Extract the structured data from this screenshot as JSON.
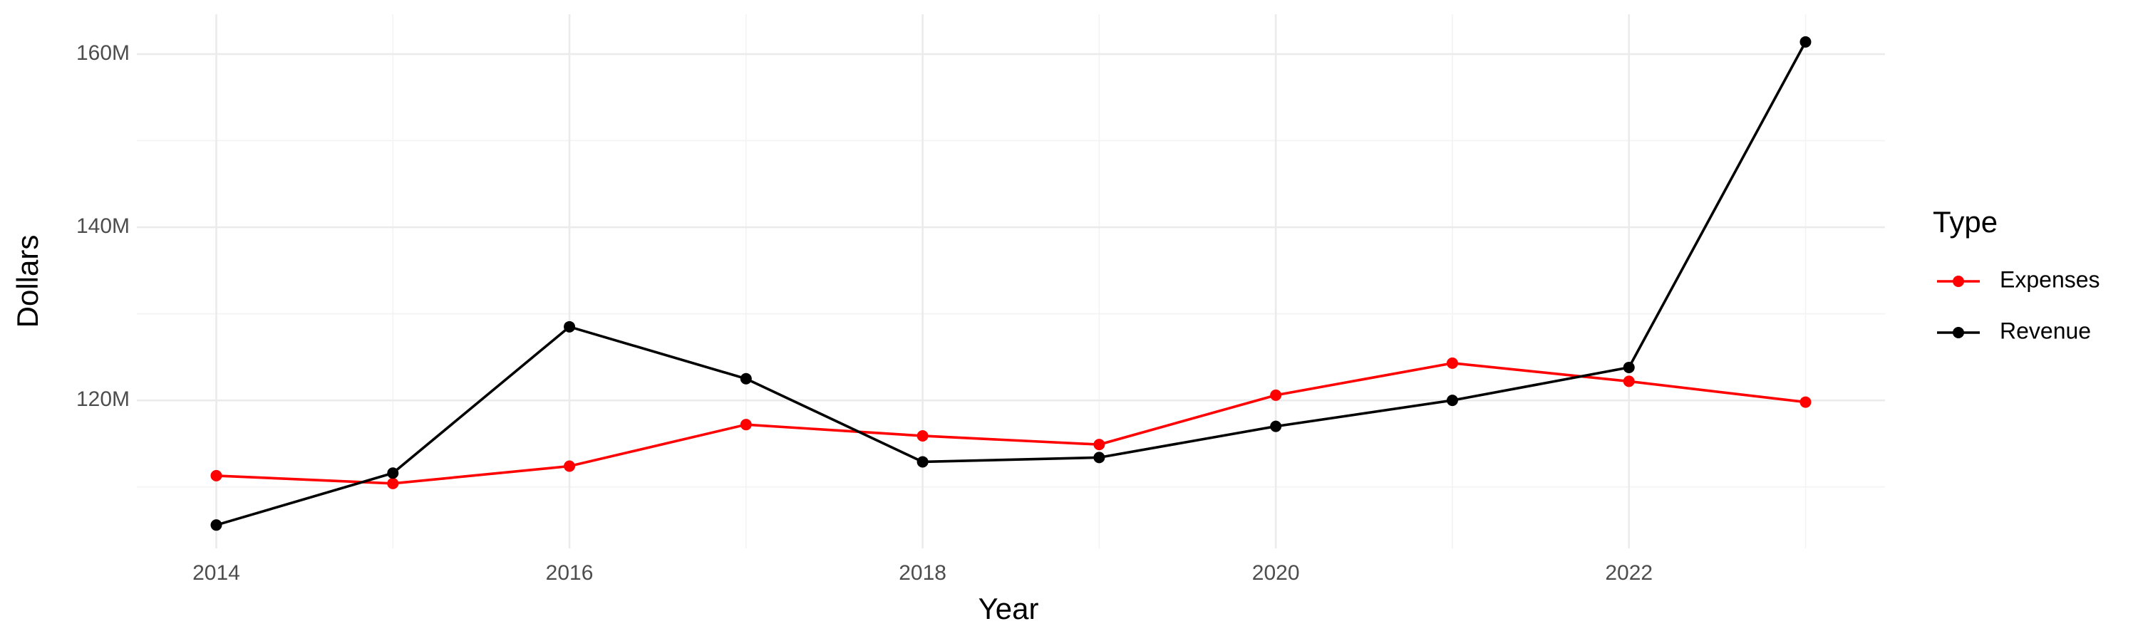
{
  "chart_data": {
    "type": "line",
    "x_label": "Year",
    "y_label": "Dollars",
    "legend_title": "Type",
    "legend_position": "right",
    "x": [
      2014,
      2015,
      2016,
      2017,
      2018,
      2019,
      2020,
      2021,
      2022,
      2023
    ],
    "series": [
      {
        "name": "Expenses",
        "color": "#ff0000",
        "values": [
          111300000,
          110400000,
          112400000,
          117200000,
          115900000,
          114900000,
          120600000,
          124300000,
          122200000,
          119800000
        ]
      },
      {
        "name": "Revenue",
        "color": "#000000",
        "values": [
          105600000,
          111600000,
          128500000,
          122500000,
          112900000,
          113400000,
          117000000,
          120000000,
          123800000,
          161400000
        ]
      }
    ],
    "xlim": [
      2013.55,
      2023.45
    ],
    "xticks": [
      2014,
      2016,
      2018,
      2020,
      2022
    ],
    "x_minor_ticks": [
      2015,
      2017,
      2019,
      2021,
      2023
    ],
    "ylim": [
      102900000,
      164600000
    ],
    "yticks": [
      {
        "value": 120000000,
        "label": "120M"
      },
      {
        "value": 140000000,
        "label": "140M"
      },
      {
        "value": 160000000,
        "label": "160M"
      }
    ],
    "y_minor_ticks": [
      110000000,
      130000000,
      150000000
    ],
    "grid": true
  }
}
